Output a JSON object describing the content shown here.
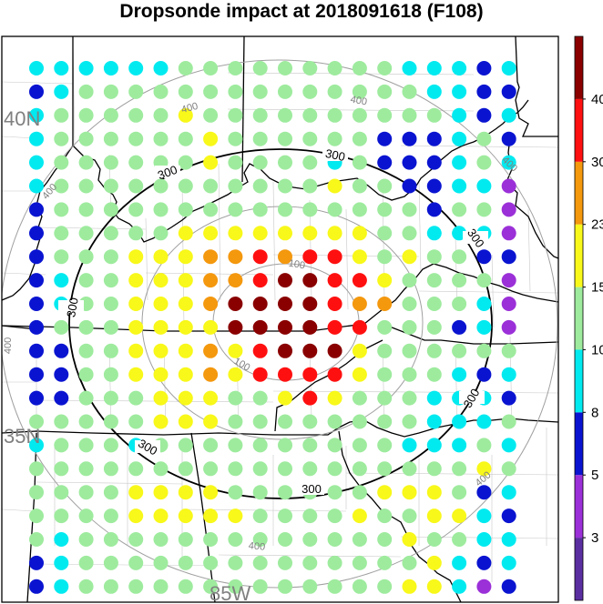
{
  "title": "Dropsonde impact at 2018091618 (F108)",
  "map": {
    "lat_labels": [
      "40N",
      "35N"
    ],
    "lon_labels": [
      "85W"
    ],
    "contour_labels_major": [
      "300"
    ],
    "contour_labels_minor": [
      "100",
      "400"
    ]
  },
  "colorbar": {
    "tick_labels": [
      "3",
      "5",
      "8",
      "10",
      "15",
      "23",
      "30",
      "40"
    ],
    "colors": [
      "#5a2ea0",
      "#9b30d8",
      "#0a14d0",
      "#00eaf0",
      "#9eeb9e",
      "#f8f81a",
      "#f4980e",
      "#ff1010",
      "#8a0000"
    ]
  },
  "grid": {
    "color_codes": {
      "c": "#00eaf0",
      "g": "#9eeb9e",
      "b": "#0a14d0",
      "y": "#f8f81a",
      "o": "#f4980e",
      "r": "#ff1010",
      "d": "#8a0000",
      "p": "#9b30d8"
    },
    "rows": [
      "ccccccgggggggggcccbc",
      "bcggggggggggggggccbb",
      "cgggggyggggggggggcbc",
      "cggggggyggggggbbbcgb",
      "cggggggyggggcgbbbcgc",
      "cgggggggggggyggbbccp",
      "bgggggggggggggggbggp",
      "bgggggyyyyyyyyggcccp",
      "bgggyyyoororrygyggbb",
      "bcggyyyoorddrryggggp",
      "bcggyyyoddddroogggcp",
      "bgggyyyyddddrrgggbcp",
      "bbggyyyoyrdddygggggg",
      "bbggyyyoyrrrrygggcbc",
      "bbgggyyyggyrygggcccb",
      "gggggyyyggggggggcccg",
      "cgggcggggggggggcccgc",
      "ggggggggggggggggggyg",
      "ggggyyyyggggggyyygbc",
      "ggggyyyyyggggyggyycb",
      "gcgggggggggggggyggcc",
      "bcggggggggggggggycbc",
      "bcgggggggggggggyycpb"
    ]
  }
}
